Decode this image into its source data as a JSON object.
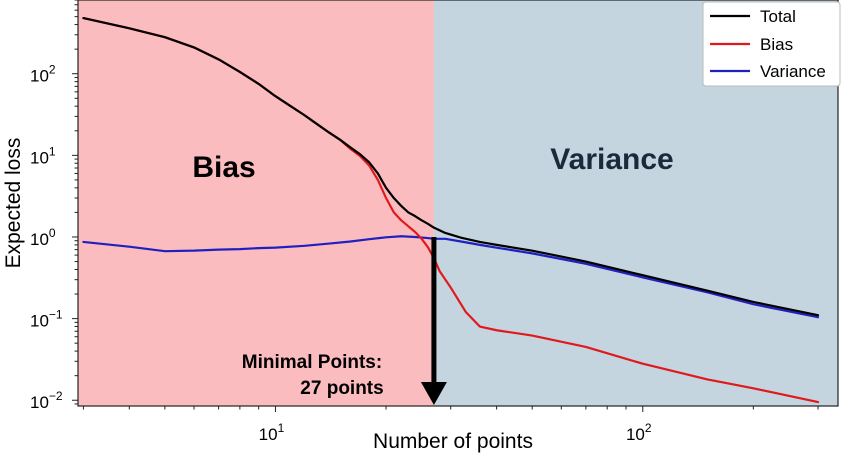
{
  "chart_data": {
    "type": "line",
    "xlabel": "Number of points",
    "ylabel": "Expected loss",
    "x_scale": "log",
    "y_scale": "log",
    "xlim": [
      2.9,
      340
    ],
    "ylim": [
      0.0085,
      800
    ],
    "x_ticks": [
      {
        "value": 10,
        "label": "10",
        "exp": "1"
      },
      {
        "value": 100,
        "label": "10",
        "exp": "2"
      }
    ],
    "y_ticks": [
      {
        "value": 100,
        "label": "10",
        "exp": "2"
      },
      {
        "value": 10,
        "label": "10",
        "exp": "1"
      },
      {
        "value": 1,
        "label": "10",
        "exp": "0"
      },
      {
        "value": 0.1,
        "label": "10",
        "exp": "−1"
      },
      {
        "value": 0.01,
        "label": "10",
        "exp": "−2"
      }
    ],
    "regions": [
      {
        "label": "Bias",
        "x_range": [
          2.9,
          27
        ],
        "color": "#fbbcbf",
        "text_color": "#000000"
      },
      {
        "label": "Variance",
        "x_range": [
          27,
          340
        ],
        "color": "#c4d5df",
        "text_color": "#1a2a3a"
      }
    ],
    "annotation": {
      "lines": [
        "Minimal Points:",
        "27 points"
      ],
      "x": 27
    },
    "legend_position": "top-right",
    "series": [
      {
        "name": "Total",
        "color": "#000000",
        "x": [
          3,
          4,
          5,
          6,
          7,
          8,
          9,
          10,
          11,
          12,
          13,
          14,
          15,
          16,
          17,
          18,
          19,
          20,
          21,
          22,
          23,
          24,
          25,
          26,
          27,
          29,
          32,
          36,
          40,
          50,
          70,
          100,
          150,
          200,
          300
        ],
        "y": [
          480,
          360,
          280,
          210,
          150,
          105,
          75,
          53,
          40,
          31,
          24,
          19,
          15.5,
          12.5,
          10.3,
          8.2,
          6,
          4,
          3,
          2.4,
          2,
          1.8,
          1.6,
          1.45,
          1.3,
          1.12,
          0.98,
          0.87,
          0.8,
          0.68,
          0.5,
          0.34,
          0.22,
          0.16,
          0.11
        ]
      },
      {
        "name": "Bias",
        "color": "#e0191d",
        "x": [
          3,
          4,
          5,
          6,
          7,
          8,
          9,
          10,
          11,
          12,
          13,
          14,
          15,
          16,
          17,
          18,
          19,
          20,
          21,
          22,
          23,
          24,
          25,
          26,
          27,
          28,
          30,
          33,
          36,
          40,
          50,
          70,
          100,
          150,
          200,
          300
        ],
        "y": [
          480,
          360,
          280,
          210,
          150,
          105,
          75,
          53,
          40,
          31,
          24,
          19,
          15.5,
          12,
          9.8,
          7.5,
          5,
          3,
          2,
          1.6,
          1.35,
          1.15,
          0.95,
          0.75,
          0.55,
          0.38,
          0.24,
          0.12,
          0.08,
          0.072,
          0.062,
          0.045,
          0.028,
          0.018,
          0.014,
          0.0095
        ]
      },
      {
        "name": "Variance",
        "color": "#2020c0",
        "x": [
          3,
          4,
          5,
          6,
          7,
          8,
          9,
          10,
          12,
          14,
          16,
          18,
          20,
          22,
          24,
          26,
          27,
          29,
          32,
          36,
          40,
          50,
          70,
          100,
          150,
          200,
          300
        ],
        "y": [
          0.87,
          0.76,
          0.67,
          0.68,
          0.7,
          0.71,
          0.73,
          0.74,
          0.78,
          0.83,
          0.88,
          0.94,
          0.99,
          1.02,
          1.0,
          0.97,
          0.95,
          0.95,
          0.88,
          0.8,
          0.74,
          0.63,
          0.47,
          0.32,
          0.21,
          0.15,
          0.104
        ]
      }
    ]
  }
}
